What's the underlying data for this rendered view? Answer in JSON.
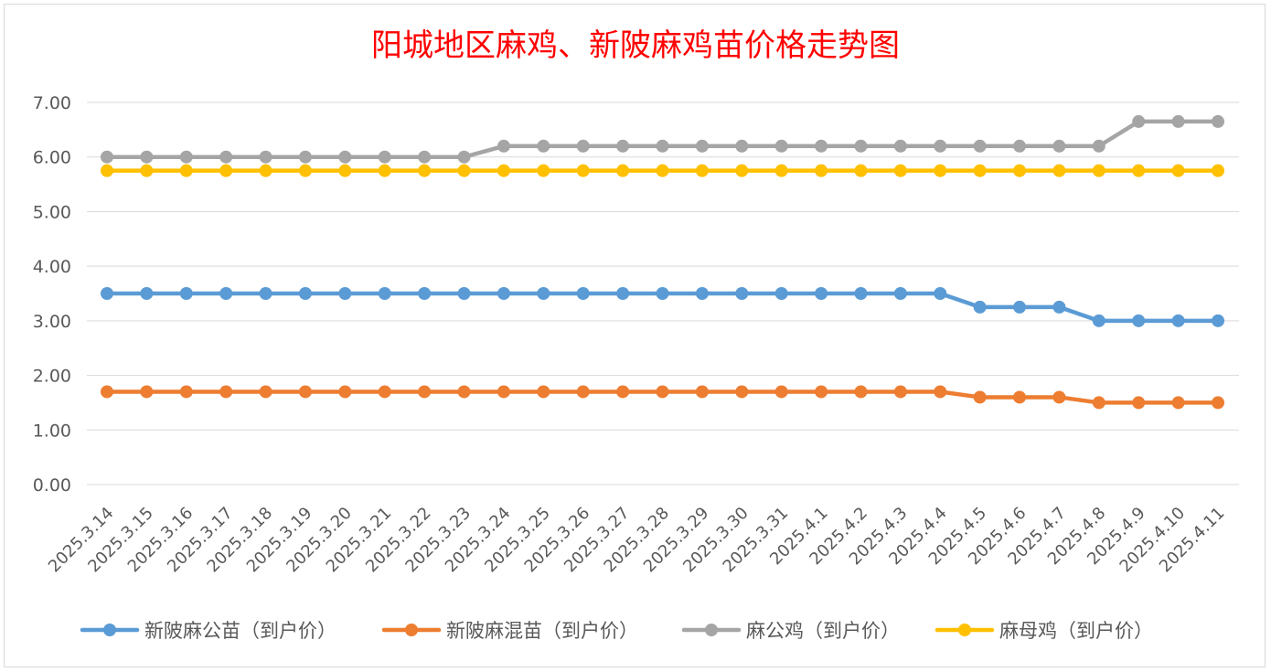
{
  "chart_data": {
    "type": "line",
    "title": "阳城地区麻鸡、新陂麻鸡苗价格走势图",
    "xlabel": "",
    "ylabel": "",
    "ylim": [
      0,
      7
    ],
    "y_ticks": [
      "0.00",
      "1.00",
      "2.00",
      "3.00",
      "4.00",
      "5.00",
      "6.00",
      "7.00"
    ],
    "grid": "horizontal",
    "legend_position": "bottom",
    "categories": [
      "2025.3.14",
      "2025.3.15",
      "2025.3.16",
      "2025.3.17",
      "2025.3.18",
      "2025.3.19",
      "2025.3.20",
      "2025.3.21",
      "2025.3.22",
      "2025.3.23",
      "2025.3.24",
      "2025.3.25",
      "2025.3.26",
      "2025.3.27",
      "2025.3.28",
      "2025.3.29",
      "2025.3.30",
      "2025.3.31",
      "2025.4.1",
      "2025.4.2",
      "2025.4.3",
      "2025.4.4",
      "2025.4.5",
      "2025.4.6",
      "2025.4.7",
      "2025.4.8",
      "2025.4.9",
      "2025.4.10",
      "2025.4.11"
    ],
    "series": [
      {
        "name": "新陂麻公苗（到户价）",
        "color": "#5b9bd5",
        "values": [
          3.5,
          3.5,
          3.5,
          3.5,
          3.5,
          3.5,
          3.5,
          3.5,
          3.5,
          3.5,
          3.5,
          3.5,
          3.5,
          3.5,
          3.5,
          3.5,
          3.5,
          3.5,
          3.5,
          3.5,
          3.5,
          3.5,
          3.25,
          3.25,
          3.25,
          3.0,
          3.0,
          3.0,
          3.0
        ]
      },
      {
        "name": "新陂麻混苗（到户价）",
        "color": "#ed7d31",
        "values": [
          1.7,
          1.7,
          1.7,
          1.7,
          1.7,
          1.7,
          1.7,
          1.7,
          1.7,
          1.7,
          1.7,
          1.7,
          1.7,
          1.7,
          1.7,
          1.7,
          1.7,
          1.7,
          1.7,
          1.7,
          1.7,
          1.7,
          1.6,
          1.6,
          1.6,
          1.5,
          1.5,
          1.5,
          1.5
        ]
      },
      {
        "name": "麻公鸡（到户价）",
        "color": "#a5a5a5",
        "values": [
          6.0,
          6.0,
          6.0,
          6.0,
          6.0,
          6.0,
          6.0,
          6.0,
          6.0,
          6.0,
          6.2,
          6.2,
          6.2,
          6.2,
          6.2,
          6.2,
          6.2,
          6.2,
          6.2,
          6.2,
          6.2,
          6.2,
          6.2,
          6.2,
          6.2,
          6.2,
          6.65,
          6.65,
          6.65
        ]
      },
      {
        "name": "麻母鸡（到户价）",
        "color": "#ffc000",
        "values": [
          5.75,
          5.75,
          5.75,
          5.75,
          5.75,
          5.75,
          5.75,
          5.75,
          5.75,
          5.75,
          5.75,
          5.75,
          5.75,
          5.75,
          5.75,
          5.75,
          5.75,
          5.75,
          5.75,
          5.75,
          5.75,
          5.75,
          5.75,
          5.75,
          5.75,
          5.75,
          5.75,
          5.75,
          5.75
        ]
      }
    ]
  }
}
